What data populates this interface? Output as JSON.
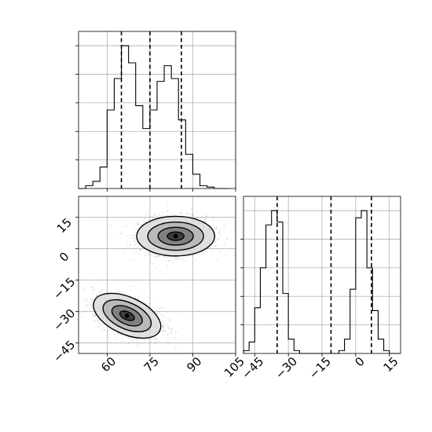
{
  "chart_data": {
    "type": "corner",
    "parameters": [
      "x",
      "y"
    ],
    "grid": true,
    "marginal_x": {
      "type": "histogram",
      "bin_edges": [
        50,
        52.5,
        55,
        57.5,
        60,
        62.5,
        65,
        67.5,
        70,
        72.5,
        75,
        77.5,
        80,
        82.5,
        85,
        87.5,
        90,
        92.5,
        95,
        97.5,
        100,
        102.5
      ],
      "counts": [
        0,
        0.02,
        0.05,
        0.15,
        0.55,
        0.77,
        1.0,
        0.88,
        0.58,
        0.42,
        0.55,
        0.75,
        0.86,
        0.77,
        0.48,
        0.24,
        0.1,
        0.02,
        0.01,
        0,
        0
      ],
      "quantiles": [
        65,
        75,
        86
      ],
      "xlim": [
        50,
        105
      ]
    },
    "marginal_y": {
      "type": "histogram",
      "bin_edges": [
        -50,
        -47.5,
        -45,
        -42.5,
        -40,
        -37.5,
        -35,
        -32.5,
        -30,
        -27.5,
        -25,
        -22.5,
        -20,
        -17.5,
        -15,
        -12.5,
        -10,
        -7.5,
        -5,
        -2.5,
        0,
        2.5,
        5,
        7.5,
        10,
        12.5,
        15,
        17.5,
        20
      ],
      "counts": [
        0.02,
        0.08,
        0.32,
        0.6,
        0.9,
        1.0,
        0.92,
        0.42,
        0.1,
        0.02,
        0,
        0,
        0,
        0,
        0,
        0,
        0,
        0.02,
        0.1,
        0.45,
        0.95,
        1.0,
        0.6,
        0.3,
        0.1,
        0.02,
        0,
        0
      ],
      "quantiles": [
        -35,
        -11,
        7
      ],
      "xlim": [
        -50,
        20
      ]
    },
    "joint": {
      "type": "scatter+density-contours",
      "xlim": [
        50,
        105
      ],
      "ylim": [
        -50,
        25
      ],
      "clusters": [
        {
          "center_x": 84,
          "center_y": 6,
          "spread_x": 6.5,
          "spread_y": 4.5,
          "tilt": 0
        },
        {
          "center_x": 67,
          "center_y": -32,
          "spread_x": 6,
          "spread_y": 4.2,
          "tilt": -0.5
        }
      ],
      "contour_levels": [
        {
          "scale": 0.45,
          "gray": "#333333"
        },
        {
          "scale": 0.95,
          "gray": "#777777"
        },
        {
          "scale": 1.5,
          "gray": "#b3b3b3"
        },
        {
          "scale": 2.1,
          "gray": "#dcdcdc"
        }
      ]
    },
    "x_ticks": [
      60,
      75,
      90,
      105
    ],
    "x_tick_labels": [
      "60",
      "75",
      "90",
      "105"
    ],
    "y_ticks": [
      15,
      0,
      -15,
      -30,
      -45
    ],
    "y_tick_labels": [
      "15",
      "0",
      "−15",
      "−30",
      "−45"
    ],
    "marginal_y_ticks": [
      -45,
      -30,
      -15,
      0,
      15
    ],
    "marginal_y_tick_labels": [
      "−45",
      "−30",
      "−15",
      "0",
      "15"
    ],
    "colors": {
      "ink": "#000000",
      "grid": "#b0b0b0",
      "points": "#000000"
    }
  }
}
